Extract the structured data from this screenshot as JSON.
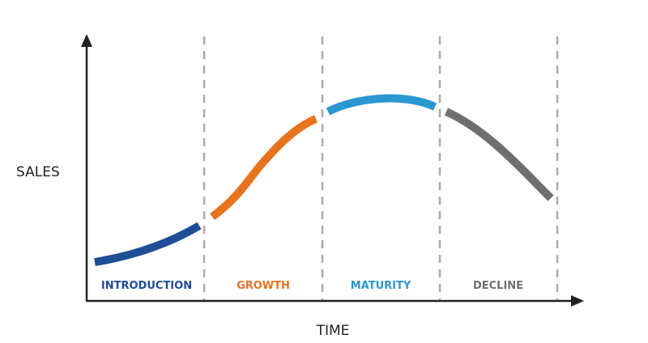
{
  "axes": {
    "y_label": "SALES",
    "x_label": "TIME"
  },
  "stages": [
    {
      "label": "INTRODUCTION"
    },
    {
      "label": "GROWTH"
    },
    {
      "label": "MATURITY"
    },
    {
      "label": "DECLINE"
    }
  ]
}
